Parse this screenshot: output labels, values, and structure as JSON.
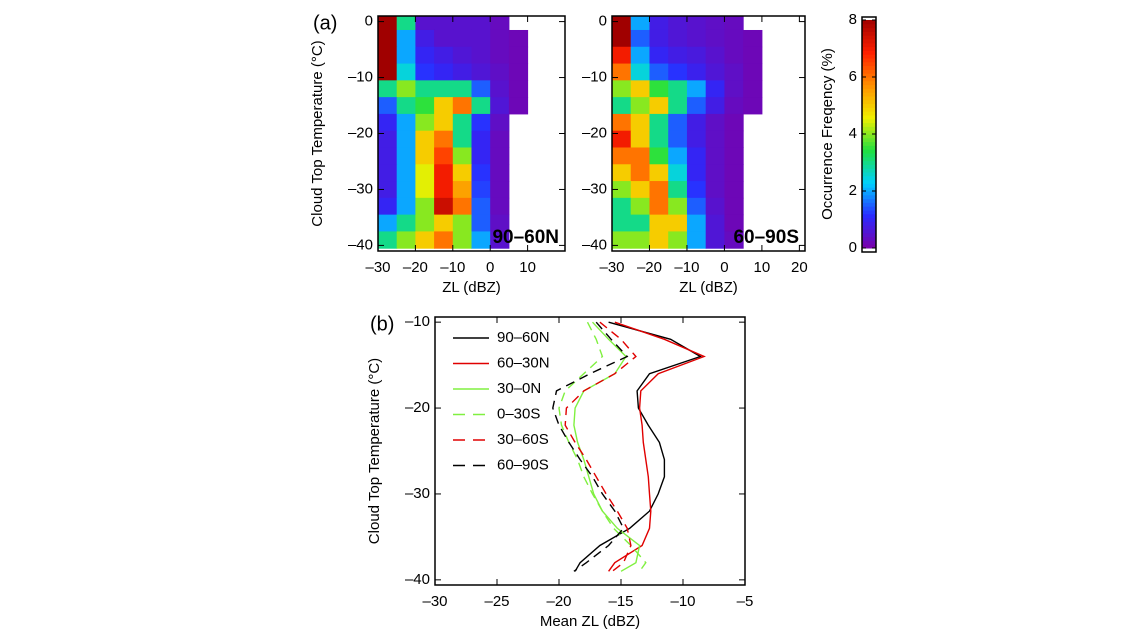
{
  "chart_data": [
    {
      "type": "heatmap",
      "panel": "(a)",
      "label": "90–60N",
      "ylabel": "Cloud Top Temperature (°C)",
      "xlabel": "ZL (dBZ)",
      "xlim": [
        -30,
        20
      ],
      "ylim": [
        -41,
        1
      ],
      "xticks": [
        {
          "value": -30,
          "label": "–30"
        },
        {
          "value": -20,
          "label": "–20"
        },
        {
          "value": -10,
          "label": "–10"
        },
        0,
        10
      ],
      "yticks": [
        0,
        {
          "value": -10,
          "label": "–10"
        },
        {
          "value": -20,
          "label": "–20"
        },
        {
          "value": -30,
          "label": "–30"
        },
        {
          "value": -40,
          "label": "–40"
        }
      ],
      "x": [
        -27.5,
        -22.5,
        -17.5,
        -12.5,
        -7.5,
        -2.5,
        2.5,
        7.5,
        12.5,
        17.5
      ],
      "y": [
        0,
        -3,
        -6,
        -9,
        -12,
        -15,
        -18,
        -21,
        -24,
        -27,
        -30,
        -33,
        -36,
        -39
      ],
      "z": [
        [
          8,
          3,
          0.5,
          0.5,
          0.5,
          0.5,
          0.3,
          null,
          null,
          null
        ],
        [
          8,
          2,
          0.8,
          0.5,
          0.5,
          0.5,
          0.3,
          0.2,
          null,
          null
        ],
        [
          8,
          2,
          1,
          0.8,
          0.6,
          0.5,
          0.3,
          0.2,
          null,
          null
        ],
        [
          8,
          2.5,
          1.2,
          1,
          0.8,
          0.6,
          0.4,
          0.2,
          null,
          null
        ],
        [
          3,
          4,
          3,
          3,
          3,
          1.5,
          0.5,
          0.2,
          null,
          null
        ],
        [
          1.5,
          3,
          3.5,
          5,
          6,
          3,
          0.6,
          0.2,
          null,
          null
        ],
        [
          1,
          2,
          4,
          5,
          3,
          1.2,
          0.4,
          null,
          null,
          null
        ],
        [
          0.8,
          2,
          5,
          6,
          3,
          1,
          0.3,
          null,
          null,
          null
        ],
        [
          0.8,
          2,
          5,
          6.5,
          4,
          1,
          0.3,
          null,
          null,
          null
        ],
        [
          0.8,
          2,
          4.5,
          7,
          5,
          1.2,
          0.3,
          null,
          null,
          null
        ],
        [
          0.8,
          2,
          4.5,
          7,
          5.5,
          1.3,
          0.3,
          null,
          null,
          null
        ],
        [
          1,
          2,
          4,
          7.5,
          6,
          1.5,
          0.3,
          null,
          null,
          null
        ],
        [
          2,
          3,
          4,
          5,
          4,
          1.5,
          0.4,
          null,
          null,
          null
        ],
        [
          3,
          4,
          5,
          6,
          4,
          2,
          0.5,
          null,
          null,
          null
        ]
      ]
    },
    {
      "type": "heatmap",
      "label": "60–90S",
      "xlabel": "ZL (dBZ)",
      "xlim": [
        -30,
        21.5
      ],
      "ylim": [
        -41,
        1
      ],
      "xticks": [
        {
          "value": -30,
          "label": "–30"
        },
        {
          "value": -20,
          "label": "–20"
        },
        {
          "value": -10,
          "label": "–10"
        },
        0,
        10,
        20
      ],
      "yticks": [
        0,
        {
          "value": -10,
          "label": "–10"
        },
        {
          "value": -20,
          "label": "–20"
        },
        {
          "value": -30,
          "label": "–30"
        },
        {
          "value": -40,
          "label": "–40"
        }
      ],
      "x": [
        -27.5,
        -22.5,
        -17.5,
        -12.5,
        -7.5,
        -2.5,
        2.5,
        7.5,
        12.5,
        17.5
      ],
      "y": [
        0,
        -3,
        -6,
        -9,
        -12,
        -15,
        -18,
        -21,
        -24,
        -27,
        -30,
        -33,
        -36,
        -39
      ],
      "z": [
        [
          8,
          2,
          0.8,
          0.6,
          0.5,
          0.4,
          0.3,
          null,
          null,
          null
        ],
        [
          8,
          1.5,
          0.8,
          0.6,
          0.5,
          0.4,
          0.3,
          0.2,
          null,
          null
        ],
        [
          7,
          2,
          1,
          0.8,
          0.7,
          0.5,
          0.3,
          0.2,
          null,
          null
        ],
        [
          6,
          2.5,
          1.5,
          1.2,
          0.9,
          0.6,
          0.4,
          0.2,
          null,
          null
        ],
        [
          4,
          5,
          3.5,
          3,
          2,
          1,
          0.4,
          0.2,
          null,
          null
        ],
        [
          3,
          4,
          5,
          3,
          1.5,
          0.8,
          0.3,
          0.2,
          null,
          null
        ],
        [
          6,
          5,
          3,
          1.5,
          0.8,
          0.4,
          0.2,
          null,
          null,
          null
        ],
        [
          7,
          5,
          3,
          1.5,
          0.8,
          0.4,
          0.2,
          null,
          null,
          null
        ],
        [
          6,
          6,
          3.5,
          2,
          1,
          0.4,
          0.2,
          null,
          null,
          null
        ],
        [
          5,
          6,
          5,
          2.5,
          1,
          0.4,
          0.2,
          null,
          null,
          null
        ],
        [
          4,
          5,
          6,
          3,
          1.2,
          0.4,
          0.2,
          null,
          null,
          null
        ],
        [
          3,
          4,
          6,
          4,
          1.5,
          0.5,
          0.2,
          null,
          null,
          null
        ],
        [
          3,
          3,
          5,
          5,
          2,
          0.6,
          0.2,
          null,
          null,
          null
        ],
        [
          4,
          4,
          5,
          4,
          2,
          0.6,
          0.3,
          null,
          null,
          null
        ]
      ],
      "colorbar": {
        "zlabel": "Occurrence Freqency (%)",
        "zlim": [
          0,
          8
        ],
        "zticks": [
          0,
          2,
          4,
          6,
          8
        ],
        "colormap": [
          "#7b00a8",
          "#2a2aff",
          "#00d0ff",
          "#20e040",
          "#f0f000",
          "#ff9000",
          "#ff2000",
          "#a00000"
        ]
      }
    },
    {
      "type": "line",
      "panel": "(b)",
      "ylabel": "Cloud Top Temperature (°C)",
      "xlabel": "Mean ZL (dBZ)",
      "xlim": [
        -30,
        -5
      ],
      "ylim": [
        -40.6,
        -9.4
      ],
      "xticks": [
        {
          "value": -30,
          "label": "–30"
        },
        {
          "value": -25,
          "label": "–25"
        },
        {
          "value": -20,
          "label": "–20"
        },
        {
          "value": -15,
          "label": "–15"
        },
        {
          "value": -10,
          "label": "–10"
        },
        {
          "value": -5,
          "label": "–5"
        }
      ],
      "yticks": [
        {
          "value": -10,
          "label": "–10"
        },
        {
          "value": -20,
          "label": "–20"
        },
        {
          "value": -30,
          "label": "–30"
        },
        {
          "value": -40,
          "label": "–40"
        }
      ],
      "legend": "top-left",
      "y": [
        -10,
        -12,
        -14,
        -16,
        -18,
        -20,
        -22,
        -24,
        -26,
        -28,
        -30,
        -32,
        -34,
        -36,
        -38,
        -39
      ],
      "series": [
        {
          "name": "90–60N",
          "color": "#000000",
          "dash": false,
          "values": [
            -16,
            -11,
            -8.6,
            -12.7,
            -13.7,
            -13.6,
            -12.8,
            -11.9,
            -11.5,
            -11.5,
            -12,
            -12.7,
            -14.3,
            -16.7,
            -18.3,
            -18.7
          ]
        },
        {
          "name": "60–30N",
          "color": "#e00000",
          "dash": false,
          "values": [
            -15.5,
            -11.5,
            -8.3,
            -12,
            -13.4,
            -13.5,
            -13.3,
            -13.2,
            -13,
            -12.8,
            -12.7,
            -12.6,
            -12.7,
            -13.3,
            -15.5,
            -16
          ]
        },
        {
          "name": "30–0N",
          "color": "#80f040",
          "dash": false,
          "values": [
            -17.3,
            -16,
            -14.6,
            -15.5,
            -18,
            -18.7,
            -18.8,
            -18.5,
            -18,
            -17.6,
            -17.2,
            -16.5,
            -15.3,
            -13.5,
            -13.8,
            -15
          ]
        },
        {
          "name": "0–30S",
          "color": "#80f040",
          "dash": true,
          "values": [
            -17.7,
            -17,
            -16.5,
            -18,
            -19.5,
            -20,
            -19.8,
            -19.2,
            -18.5,
            -18,
            -17.3,
            -16.5,
            -15.6,
            -14.2,
            -13,
            -13.5
          ]
        },
        {
          "name": "30–60S",
          "color": "#e00000",
          "dash": true,
          "values": [
            -16.7,
            -15,
            -13.8,
            -15.5,
            -18,
            -19.4,
            -19.5,
            -18.7,
            -17.8,
            -17,
            -16.2,
            -15.3,
            -14.5,
            -14.2,
            -14.8,
            -15.7
          ]
        },
        {
          "name": "60–90S",
          "color": "#000000",
          "dash": true,
          "values": [
            -17,
            -15.8,
            -14.5,
            -17.5,
            -20.2,
            -20.5,
            -20,
            -19.2,
            -18.3,
            -17.3,
            -16.5,
            -15.5,
            -14.8,
            -16,
            -17.8,
            -18.8
          ]
        }
      ]
    }
  ]
}
